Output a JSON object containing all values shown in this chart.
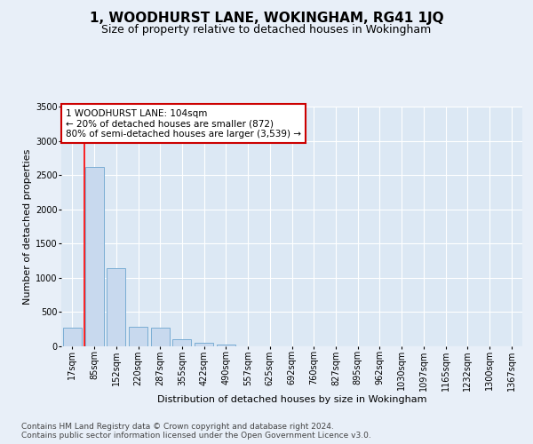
{
  "title": "1, WOODHURST LANE, WOKINGHAM, RG41 1JQ",
  "subtitle": "Size of property relative to detached houses in Wokingham",
  "xlabel": "Distribution of detached houses by size in Wokingham",
  "ylabel": "Number of detached properties",
  "categories": [
    "17sqm",
    "85sqm",
    "152sqm",
    "220sqm",
    "287sqm",
    "355sqm",
    "422sqm",
    "490sqm",
    "557sqm",
    "625sqm",
    "692sqm",
    "760sqm",
    "827sqm",
    "895sqm",
    "962sqm",
    "1030sqm",
    "1097sqm",
    "1165sqm",
    "1232sqm",
    "1300sqm",
    "1367sqm"
  ],
  "values": [
    270,
    2620,
    1140,
    280,
    275,
    100,
    55,
    30,
    5,
    3,
    2,
    2,
    1,
    1,
    1,
    1,
    1,
    1,
    1,
    1,
    1
  ],
  "bar_color": "#c8d9ee",
  "bar_edge_color": "#7aadd4",
  "red_line_index": 0.57,
  "ylim": [
    0,
    3500
  ],
  "yticks": [
    0,
    500,
    1000,
    1500,
    2000,
    2500,
    3000,
    3500
  ],
  "annotation_text": "1 WOODHURST LANE: 104sqm\n← 20% of detached houses are smaller (872)\n80% of semi-detached houses are larger (3,539) →",
  "annotation_box_color": "#ffffff",
  "annotation_box_edge": "#cc0000",
  "footer_text": "Contains HM Land Registry data © Crown copyright and database right 2024.\nContains public sector information licensed under the Open Government Licence v3.0.",
  "background_color": "#e8eff8",
  "plot_background": "#dce8f4",
  "grid_color": "#ffffff",
  "title_fontsize": 11,
  "subtitle_fontsize": 9,
  "axis_label_fontsize": 8,
  "tick_fontsize": 7,
  "annotation_fontsize": 7.5,
  "footer_fontsize": 6.5
}
